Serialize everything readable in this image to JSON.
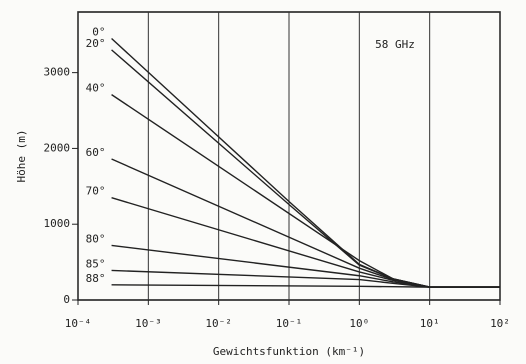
{
  "chart_data": {
    "type": "line",
    "xlabel": "Gewichtsfunktion  (km⁻¹)",
    "ylabel": "Höhe  (m)",
    "annotation": "58 GHz",
    "xscale": "log",
    "xlim": [
      0.0001,
      100
    ],
    "ylim": [
      0,
      3800
    ],
    "xticks": [
      {
        "value": 0.0001,
        "label": "10⁻⁴"
      },
      {
        "value": 0.001,
        "label": "10⁻³"
      },
      {
        "value": 0.01,
        "label": "10⁻²"
      },
      {
        "value": 0.1,
        "label": "10⁻¹"
      },
      {
        "value": 1,
        "label": "10⁰"
      },
      {
        "value": 10,
        "label": "10¹"
      },
      {
        "value": 100,
        "label": "10²"
      }
    ],
    "yticks": [
      0,
      1000,
      2000,
      3000
    ],
    "grid": "x",
    "color": "#222222",
    "series": [
      {
        "name": "0°",
        "x": [
          0.0003,
          0.1,
          1,
          3,
          10,
          100
        ],
        "values": [
          3450,
          1300,
          470,
          280,
          170,
          170
        ]
      },
      {
        "name": "20°",
        "x": [
          0.0003,
          0.1,
          1,
          3,
          10,
          100
        ],
        "values": [
          3300,
          1260,
          460,
          280,
          170,
          170
        ]
      },
      {
        "name": "40°",
        "x": [
          0.0003,
          1,
          3,
          10,
          100
        ],
        "values": [
          2710,
          520,
          280,
          170,
          170
        ]
      },
      {
        "name": "60°",
        "x": [
          0.0003,
          1,
          3,
          10,
          100
        ],
        "values": [
          1860,
          420,
          270,
          170,
          170
        ]
      },
      {
        "name": "70°",
        "x": [
          0.0003,
          1,
          3,
          10,
          100
        ],
        "values": [
          1350,
          370,
          260,
          170,
          170
        ]
      },
      {
        "name": "80°",
        "x": [
          0.0003,
          1,
          3,
          10,
          100
        ],
        "values": [
          720,
          320,
          240,
          170,
          170
        ]
      },
      {
        "name": "85°",
        "x": [
          0.0003,
          1,
          3,
          10,
          100
        ],
        "values": [
          390,
          270,
          220,
          170,
          170
        ]
      },
      {
        "name": "88°",
        "x": [
          0.0003,
          1,
          3,
          10,
          100
        ],
        "values": [
          200,
          180,
          175,
          170,
          170
        ]
      }
    ]
  }
}
